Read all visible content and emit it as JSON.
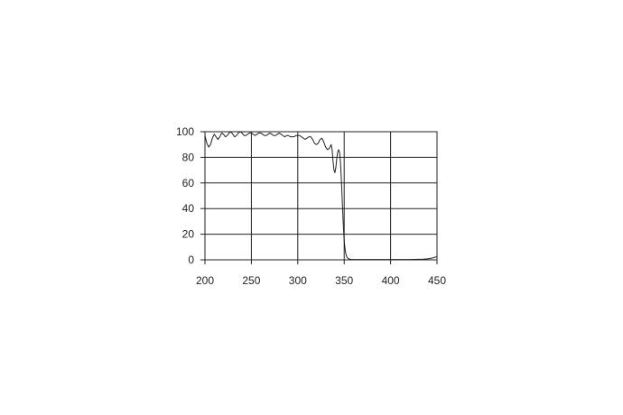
{
  "chart_data": {
    "type": "line",
    "title": "",
    "xlabel": "",
    "ylabel": "",
    "xlim": [
      200,
      450
    ],
    "ylim": [
      0,
      100
    ],
    "x_ticks": [
      200,
      250,
      300,
      350,
      400,
      450
    ],
    "y_ticks": [
      0,
      20,
      40,
      60,
      80,
      100
    ],
    "x_tick_labels": [
      "200",
      "250",
      "300",
      "350",
      "400",
      "450"
    ],
    "y_tick_labels": [
      "0",
      "20",
      "40",
      "60",
      "80",
      "100"
    ],
    "grid": true,
    "legend": "none",
    "line_color": "#222222",
    "series": [
      {
        "x": [
          200,
          202,
          204,
          206,
          208,
          210,
          212,
          214,
          216,
          218,
          220,
          222,
          224,
          226,
          228,
          230,
          232,
          234,
          236,
          238,
          240,
          242,
          244,
          246,
          248,
          250,
          252,
          254,
          256,
          258,
          260,
          262,
          264,
          266,
          268,
          270,
          272,
          274,
          276,
          278,
          280,
          282,
          284,
          286,
          288,
          290,
          292,
          294,
          296,
          298,
          300,
          302,
          304,
          306,
          308,
          310,
          312,
          314,
          316,
          318,
          320,
          322,
          324,
          326,
          328,
          330,
          332,
          334,
          336,
          337,
          338,
          339,
          340,
          341,
          342,
          343,
          344,
          345,
          346,
          347,
          348,
          349,
          350,
          351,
          352,
          353,
          354,
          355,
          356,
          357,
          358,
          360,
          365,
          370,
          380,
          390,
          400,
          410,
          420,
          430,
          435,
          440,
          445,
          450
        ],
        "y": [
          97,
          91,
          88,
          90,
          95,
          98,
          96,
          94,
          96,
          99,
          98,
          96,
          97,
          99,
          100,
          98,
          96,
          97,
          99,
          100,
          99,
          97,
          97,
          98,
          99,
          99,
          98,
          97,
          98,
          99,
          99,
          98,
          97,
          97,
          98,
          99,
          98,
          97,
          97,
          98,
          99,
          98,
          97,
          96,
          97,
          97,
          96,
          96,
          96,
          97,
          97,
          97,
          96,
          95,
          94,
          95,
          96,
          96,
          94,
          91,
          90,
          91,
          94,
          95,
          92,
          88,
          86,
          87,
          90,
          86,
          77,
          70,
          68,
          72,
          79,
          84,
          86,
          84,
          76,
          62,
          45,
          28,
          15,
          8,
          4,
          2,
          1.2,
          0.8,
          0.5,
          0.4,
          0.3,
          0.3,
          0.3,
          0.3,
          0.3,
          0.3,
          0.3,
          0.3,
          0.3,
          0.4,
          0.5,
          0.8,
          1.4,
          2.5
        ]
      }
    ]
  }
}
